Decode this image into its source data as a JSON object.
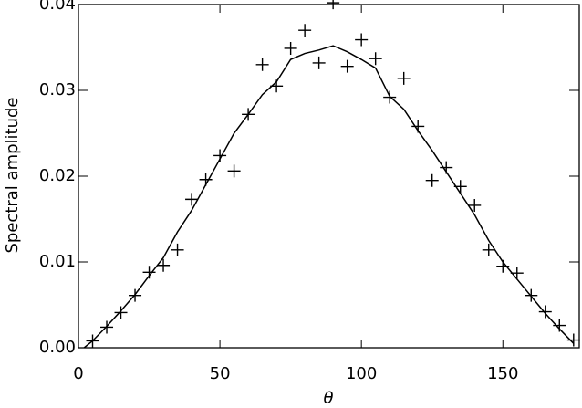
{
  "chart_data": {
    "type": "scatter",
    "xlabel": "θ",
    "ylabel": "Spectral amplitude",
    "xlim": [
      0,
      177
    ],
    "ylim": [
      0,
      0.04
    ],
    "xticks": [
      0,
      50,
      100,
      150
    ],
    "yticks": [
      {
        "value": 0,
        "label": "0.00"
      },
      0.01,
      0.02,
      0.03,
      0.04
    ],
    "series": [
      {
        "mode": "markers",
        "marker": "plus",
        "color": "#000000",
        "x": [
          5,
          10,
          15,
          20,
          25,
          30,
          35,
          40,
          45,
          50,
          55,
          60,
          65,
          70,
          75,
          80,
          85,
          90,
          95,
          100,
          105,
          110,
          115,
          120,
          125,
          130,
          135,
          140,
          145,
          150,
          155,
          160,
          165,
          170,
          175
        ],
        "values": [
          0.0008,
          0.0024,
          0.0041,
          0.0061,
          0.0088,
          0.0096,
          0.0114,
          0.0173,
          0.0196,
          0.0224,
          0.0206,
          0.0272,
          0.033,
          0.0305,
          0.0349,
          0.037,
          0.0332,
          0.0402,
          0.0328,
          0.0359,
          0.0337,
          0.0292,
          0.0314,
          0.0258,
          0.0195,
          0.021,
          0.0188,
          0.0166,
          0.0114,
          0.0095,
          0.0087,
          0.0061,
          0.0042,
          0.0026,
          0.0009
        ]
      },
      {
        "mode": "lines",
        "color": "#000000",
        "x": [
          2,
          5,
          10,
          15,
          20,
          25,
          30,
          35,
          40,
          45,
          50,
          55,
          60,
          65,
          70,
          75,
          80,
          85,
          90,
          95,
          100,
          105,
          110,
          115,
          120,
          125,
          130,
          135,
          140,
          145,
          150,
          155,
          160,
          165,
          170,
          175
        ],
        "values": [
          0,
          0.0008,
          0.0025,
          0.0043,
          0.0062,
          0.0084,
          0.0105,
          0.0135,
          0.016,
          0.019,
          0.022,
          0.025,
          0.0272,
          0.0295,
          0.031,
          0.0336,
          0.0343,
          0.0347,
          0.0352,
          0.0345,
          0.0336,
          0.0326,
          0.0293,
          0.0278,
          0.0253,
          0.023,
          0.0205,
          0.018,
          0.0155,
          0.0125,
          0.01,
          0.008,
          0.006,
          0.004,
          0.0022,
          0.0005
        ]
      }
    ]
  }
}
